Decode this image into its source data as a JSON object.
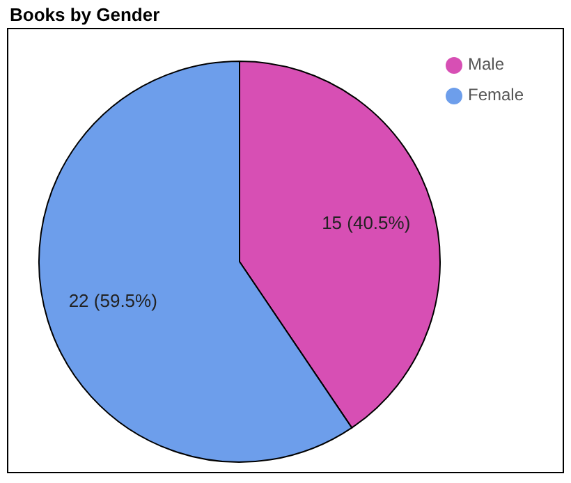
{
  "chart_data": {
    "type": "pie",
    "title": "Books by Gender",
    "categories": [
      "Male",
      "Female"
    ],
    "values": [
      15,
      22
    ],
    "colors": [
      "#d74fb4",
      "#6d9eeb"
    ],
    "value_labels": [
      "15 (40.5%)",
      "22 (59.5%)"
    ],
    "legend": "top right"
  }
}
